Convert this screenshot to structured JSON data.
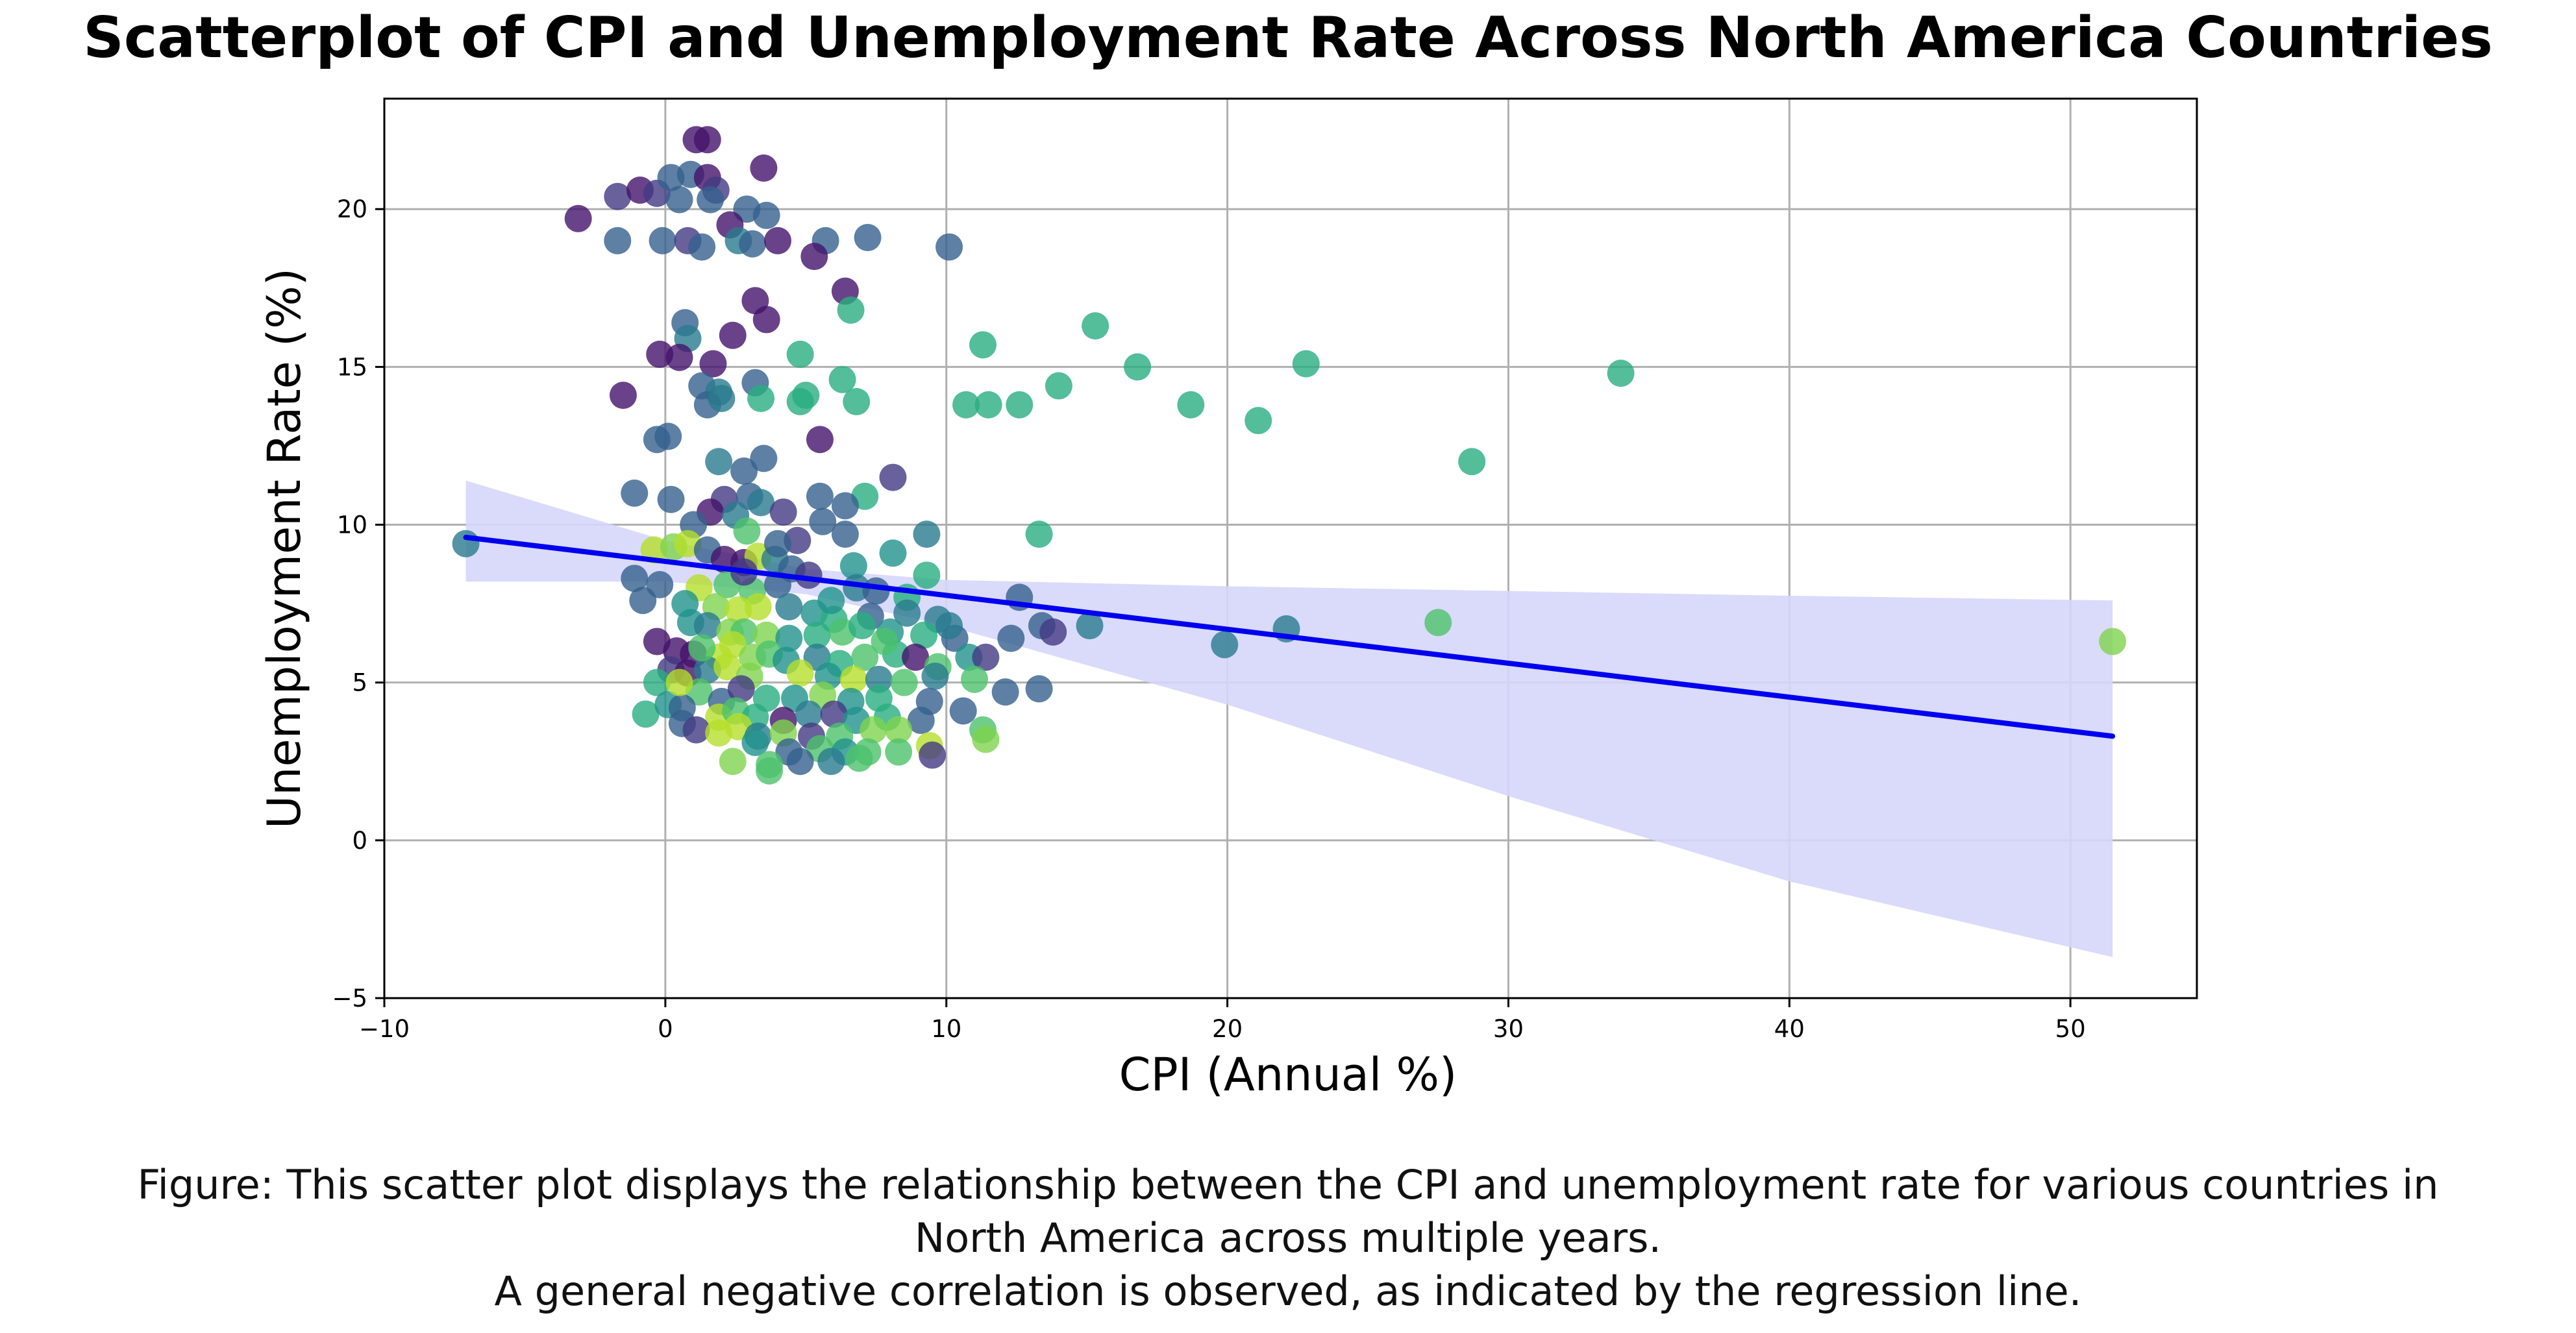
{
  "chart_data": {
    "type": "scatter",
    "title": "Scatterplot of CPI and Unemployment Rate Across North America Countries",
    "xlabel": "CPI (Annual %)",
    "ylabel": "Unemployment Rate (%)",
    "xlim": [
      -10,
      54.5
    ],
    "ylim": [
      -5,
      23.5
    ],
    "xticks": [
      -10,
      0,
      10,
      20,
      30,
      40,
      50
    ],
    "yticks": [
      -5,
      0,
      5,
      10,
      15,
      20
    ],
    "xtick_labels": [
      "−10",
      "0",
      "10",
      "20",
      "30",
      "40",
      "50"
    ],
    "ytick_labels": [
      "−5",
      "0",
      "5",
      "10",
      "15",
      "20"
    ],
    "grid": true,
    "legend": "none",
    "colors": {
      "regression_line": "#0000ee",
      "confidence_band": "#d6d6fb",
      "palette": [
        "#45136b",
        "#443983",
        "#35608d",
        "#297b8e",
        "#20928c",
        "#28ae80",
        "#4cc26c",
        "#7fd34e",
        "#b5de2b"
      ]
    },
    "regression": {
      "x_start": -7.1,
      "y_start": 9.6,
      "x_end": 51.5,
      "y_end": 3.3,
      "band_upper": [
        [
          -7.1,
          11.4
        ],
        [
          0,
          9.5
        ],
        [
          5,
          8.6
        ],
        [
          10,
          8.25
        ],
        [
          20,
          8.05
        ],
        [
          30,
          7.9
        ],
        [
          40,
          7.75
        ],
        [
          51.5,
          7.6
        ]
      ],
      "band_lower": [
        [
          -7.1,
          8.2
        ],
        [
          0,
          8.2
        ],
        [
          5,
          7.8
        ],
        [
          10,
          6.8
        ],
        [
          20,
          4.3
        ],
        [
          30,
          1.4
        ],
        [
          40,
          -1.3
        ],
        [
          51.5,
          -3.7
        ]
      ]
    },
    "points": [
      {
        "x": -3.1,
        "y": 19.7,
        "c": 0
      },
      {
        "x": -1.7,
        "y": 20.4,
        "c": 1
      },
      {
        "x": -0.9,
        "y": 20.6,
        "c": 0
      },
      {
        "x": -0.3,
        "y": 20.5,
        "c": 1
      },
      {
        "x": 0.2,
        "y": 21.0,
        "c": 2
      },
      {
        "x": 1.1,
        "y": 22.2,
        "c": 0
      },
      {
        "x": 1.5,
        "y": 22.2,
        "c": 0
      },
      {
        "x": 0.9,
        "y": 21.1,
        "c": 2
      },
      {
        "x": 1.5,
        "y": 21.0,
        "c": 0
      },
      {
        "x": 3.5,
        "y": 21.3,
        "c": 0
      },
      {
        "x": 1.8,
        "y": 20.6,
        "c": 1
      },
      {
        "x": 0.5,
        "y": 20.3,
        "c": 2
      },
      {
        "x": 1.6,
        "y": 20.3,
        "c": 2
      },
      {
        "x": 2.9,
        "y": 20.0,
        "c": 2
      },
      {
        "x": 3.6,
        "y": 19.8,
        "c": 2
      },
      {
        "x": 2.3,
        "y": 19.5,
        "c": 0
      },
      {
        "x": -1.7,
        "y": 19.0,
        "c": 2
      },
      {
        "x": -0.1,
        "y": 19.0,
        "c": 2
      },
      {
        "x": 0.8,
        "y": 19.0,
        "c": 1
      },
      {
        "x": 2.6,
        "y": 19.0,
        "c": 3
      },
      {
        "x": 3.1,
        "y": 18.9,
        "c": 2
      },
      {
        "x": 1.3,
        "y": 18.8,
        "c": 2
      },
      {
        "x": 4.0,
        "y": 19.0,
        "c": 0
      },
      {
        "x": 5.7,
        "y": 19.0,
        "c": 2
      },
      {
        "x": 7.2,
        "y": 19.1,
        "c": 2
      },
      {
        "x": 5.3,
        "y": 18.5,
        "c": 0
      },
      {
        "x": 10.1,
        "y": 18.8,
        "c": 2
      },
      {
        "x": 3.2,
        "y": 17.1,
        "c": 0
      },
      {
        "x": 6.4,
        "y": 17.4,
        "c": 0
      },
      {
        "x": 6.6,
        "y": 16.8,
        "c": 5
      },
      {
        "x": 3.6,
        "y": 16.5,
        "c": 0
      },
      {
        "x": 0.7,
        "y": 16.4,
        "c": 2
      },
      {
        "x": 0.8,
        "y": 15.9,
        "c": 3
      },
      {
        "x": 2.4,
        "y": 16.0,
        "c": 0
      },
      {
        "x": -0.2,
        "y": 15.4,
        "c": 0
      },
      {
        "x": 0.5,
        "y": 15.3,
        "c": 0
      },
      {
        "x": 1.7,
        "y": 15.1,
        "c": 0
      },
      {
        "x": 4.8,
        "y": 15.4,
        "c": 5
      },
      {
        "x": 11.3,
        "y": 15.7,
        "c": 5
      },
      {
        "x": 15.3,
        "y": 16.3,
        "c": 5
      },
      {
        "x": 16.8,
        "y": 15.0,
        "c": 5
      },
      {
        "x": 22.8,
        "y": 15.1,
        "c": 5
      },
      {
        "x": 34.0,
        "y": 14.8,
        "c": 5
      },
      {
        "x": 1.3,
        "y": 14.4,
        "c": 2
      },
      {
        "x": 3.2,
        "y": 14.5,
        "c": 2
      },
      {
        "x": 1.9,
        "y": 14.2,
        "c": 3
      },
      {
        "x": 6.3,
        "y": 14.6,
        "c": 5
      },
      {
        "x": 1.5,
        "y": 13.8,
        "c": 2
      },
      {
        "x": 2.0,
        "y": 14.0,
        "c": 3
      },
      {
        "x": 3.4,
        "y": 14.0,
        "c": 5
      },
      {
        "x": 5.0,
        "y": 14.1,
        "c": 5
      },
      {
        "x": 4.8,
        "y": 13.9,
        "c": 5
      },
      {
        "x": 6.8,
        "y": 13.9,
        "c": 5
      },
      {
        "x": 10.7,
        "y": 13.8,
        "c": 5
      },
      {
        "x": 11.5,
        "y": 13.8,
        "c": 5
      },
      {
        "x": 12.6,
        "y": 13.8,
        "c": 5
      },
      {
        "x": 14.0,
        "y": 14.4,
        "c": 5
      },
      {
        "x": 18.7,
        "y": 13.8,
        "c": 5
      },
      {
        "x": 21.1,
        "y": 13.3,
        "c": 5
      },
      {
        "x": -1.5,
        "y": 14.1,
        "c": 0
      },
      {
        "x": -0.3,
        "y": 12.7,
        "c": 2
      },
      {
        "x": 0.1,
        "y": 12.8,
        "c": 2
      },
      {
        "x": 5.5,
        "y": 12.7,
        "c": 0
      },
      {
        "x": 1.9,
        "y": 12.0,
        "c": 3
      },
      {
        "x": 3.5,
        "y": 12.1,
        "c": 2
      },
      {
        "x": 28.7,
        "y": 12.0,
        "c": 5
      },
      {
        "x": 2.8,
        "y": 11.7,
        "c": 2
      },
      {
        "x": 8.1,
        "y": 11.5,
        "c": 1
      },
      {
        "x": -1.1,
        "y": 11.0,
        "c": 2
      },
      {
        "x": 0.2,
        "y": 10.8,
        "c": 2
      },
      {
        "x": 2.1,
        "y": 10.8,
        "c": 1
      },
      {
        "x": 3.0,
        "y": 10.9,
        "c": 2
      },
      {
        "x": 3.4,
        "y": 10.7,
        "c": 3
      },
      {
        "x": 5.5,
        "y": 10.9,
        "c": 2
      },
      {
        "x": 7.1,
        "y": 10.9,
        "c": 5
      },
      {
        "x": 1.6,
        "y": 10.4,
        "c": 0
      },
      {
        "x": 2.5,
        "y": 10.3,
        "c": 3
      },
      {
        "x": 4.2,
        "y": 10.4,
        "c": 1
      },
      {
        "x": 6.4,
        "y": 10.6,
        "c": 2
      },
      {
        "x": 1.0,
        "y": 10.0,
        "c": 2
      },
      {
        "x": 5.6,
        "y": 10.1,
        "c": 2
      },
      {
        "x": 2.9,
        "y": 9.8,
        "c": 6
      },
      {
        "x": 4.7,
        "y": 9.5,
        "c": 1
      },
      {
        "x": 6.4,
        "y": 9.7,
        "c": 2
      },
      {
        "x": 9.3,
        "y": 9.7,
        "c": 3
      },
      {
        "x": 13.3,
        "y": 9.7,
        "c": 5
      },
      {
        "x": -7.1,
        "y": 9.4,
        "c": 3
      },
      {
        "x": -0.4,
        "y": 9.2,
        "c": 8
      },
      {
        "x": 0.3,
        "y": 9.3,
        "c": 7
      },
      {
        "x": 0.8,
        "y": 9.4,
        "c": 8
      },
      {
        "x": 1.5,
        "y": 9.2,
        "c": 2
      },
      {
        "x": 2.1,
        "y": 8.9,
        "c": 0
      },
      {
        "x": 2.8,
        "y": 8.8,
        "c": 0
      },
      {
        "x": 3.3,
        "y": 9.0,
        "c": 8
      },
      {
        "x": 3.9,
        "y": 8.9,
        "c": 3
      },
      {
        "x": 8.1,
        "y": 9.1,
        "c": 4
      },
      {
        "x": 4.5,
        "y": 8.6,
        "c": 2
      },
      {
        "x": 5.1,
        "y": 8.4,
        "c": 1
      },
      {
        "x": 6.7,
        "y": 8.7,
        "c": 4
      },
      {
        "x": 9.3,
        "y": 8.4,
        "c": 5
      },
      {
        "x": -1.1,
        "y": 8.3,
        "c": 2
      },
      {
        "x": -0.2,
        "y": 8.1,
        "c": 2
      },
      {
        "x": 1.2,
        "y": 8.0,
        "c": 8
      },
      {
        "x": 2.2,
        "y": 8.1,
        "c": 6
      },
      {
        "x": 3.1,
        "y": 7.9,
        "c": 6
      },
      {
        "x": 4.0,
        "y": 8.1,
        "c": 2
      },
      {
        "x": 6.8,
        "y": 8.0,
        "c": 3
      },
      {
        "x": 7.5,
        "y": 7.9,
        "c": 2
      },
      {
        "x": 8.6,
        "y": 7.7,
        "c": 5
      },
      {
        "x": -0.8,
        "y": 7.6,
        "c": 2
      },
      {
        "x": 0.7,
        "y": 7.5,
        "c": 4
      },
      {
        "x": 1.8,
        "y": 7.4,
        "c": 7
      },
      {
        "x": 2.6,
        "y": 7.3,
        "c": 8
      },
      {
        "x": 3.3,
        "y": 7.4,
        "c": 8
      },
      {
        "x": 4.4,
        "y": 7.4,
        "c": 3
      },
      {
        "x": 5.3,
        "y": 7.2,
        "c": 4
      },
      {
        "x": 6.0,
        "y": 7.0,
        "c": 5
      },
      {
        "x": 7.3,
        "y": 7.1,
        "c": 2
      },
      {
        "x": 8.6,
        "y": 7.2,
        "c": 3
      },
      {
        "x": 9.7,
        "y": 7.0,
        "c": 3
      },
      {
        "x": 12.6,
        "y": 7.7,
        "c": 2
      },
      {
        "x": 0.9,
        "y": 6.9,
        "c": 4
      },
      {
        "x": 1.5,
        "y": 6.8,
        "c": 3
      },
      {
        "x": 2.3,
        "y": 6.6,
        "c": 7
      },
      {
        "x": 2.8,
        "y": 6.6,
        "c": 6
      },
      {
        "x": 3.6,
        "y": 6.5,
        "c": 7
      },
      {
        "x": 4.4,
        "y": 6.4,
        "c": 4
      },
      {
        "x": 5.4,
        "y": 6.5,
        "c": 5
      },
      {
        "x": 6.3,
        "y": 6.6,
        "c": 6
      },
      {
        "x": 7.0,
        "y": 6.8,
        "c": 5
      },
      {
        "x": 8.0,
        "y": 6.6,
        "c": 4
      },
      {
        "x": 9.2,
        "y": 6.5,
        "c": 5
      },
      {
        "x": 10.3,
        "y": 6.4,
        "c": 2
      },
      {
        "x": 13.4,
        "y": 6.8,
        "c": 2
      },
      {
        "x": 13.8,
        "y": 6.6,
        "c": 1
      },
      {
        "x": 15.1,
        "y": 6.8,
        "c": 3
      },
      {
        "x": 19.9,
        "y": 6.2,
        "c": 3
      },
      {
        "x": 22.1,
        "y": 6.7,
        "c": 3
      },
      {
        "x": 27.5,
        "y": 6.9,
        "c": 6
      },
      {
        "x": 51.5,
        "y": 6.3,
        "c": 7
      },
      {
        "x": -0.3,
        "y": 6.3,
        "c": 0
      },
      {
        "x": 0.4,
        "y": 6.0,
        "c": 0
      },
      {
        "x": 1.0,
        "y": 5.9,
        "c": 0
      },
      {
        "x": 1.9,
        "y": 5.8,
        "c": 8
      },
      {
        "x": 2.4,
        "y": 6.2,
        "c": 8
      },
      {
        "x": 3.1,
        "y": 5.8,
        "c": 7
      },
      {
        "x": 3.7,
        "y": 5.9,
        "c": 6
      },
      {
        "x": 4.3,
        "y": 5.7,
        "c": 4
      },
      {
        "x": 5.4,
        "y": 5.8,
        "c": 3
      },
      {
        "x": 6.2,
        "y": 5.6,
        "c": 5
      },
      {
        "x": 7.1,
        "y": 5.8,
        "c": 6
      },
      {
        "x": 8.2,
        "y": 5.9,
        "c": 5
      },
      {
        "x": 8.9,
        "y": 5.8,
        "c": 0
      },
      {
        "x": 9.7,
        "y": 5.5,
        "c": 6
      },
      {
        "x": 10.8,
        "y": 5.8,
        "c": 4
      },
      {
        "x": 11.4,
        "y": 5.8,
        "c": 1
      },
      {
        "x": 12.3,
        "y": 6.4,
        "c": 2
      },
      {
        "x": 0.2,
        "y": 5.4,
        "c": 1
      },
      {
        "x": 0.8,
        "y": 5.3,
        "c": 0
      },
      {
        "x": 1.5,
        "y": 5.4,
        "c": 3
      },
      {
        "x": 2.2,
        "y": 5.5,
        "c": 8
      },
      {
        "x": 3.0,
        "y": 5.2,
        "c": 7
      },
      {
        "x": 4.8,
        "y": 5.3,
        "c": 8
      },
      {
        "x": 5.8,
        "y": 5.2,
        "c": 4
      },
      {
        "x": 6.7,
        "y": 5.1,
        "c": 8
      },
      {
        "x": 7.6,
        "y": 5.1,
        "c": 3
      },
      {
        "x": 8.5,
        "y": 5.0,
        "c": 6
      },
      {
        "x": 9.6,
        "y": 5.2,
        "c": 3
      },
      {
        "x": 11.0,
        "y": 5.1,
        "c": 6
      },
      {
        "x": -0.3,
        "y": 5.0,
        "c": 5
      },
      {
        "x": 1.2,
        "y": 4.7,
        "c": 6
      },
      {
        "x": 2.0,
        "y": 4.4,
        "c": 2
      },
      {
        "x": 2.7,
        "y": 4.8,
        "c": 1
      },
      {
        "x": 3.6,
        "y": 4.5,
        "c": 5
      },
      {
        "x": 4.6,
        "y": 4.5,
        "c": 4
      },
      {
        "x": 5.6,
        "y": 4.6,
        "c": 7
      },
      {
        "x": 6.6,
        "y": 4.4,
        "c": 4
      },
      {
        "x": 7.6,
        "y": 4.5,
        "c": 5
      },
      {
        "x": 9.4,
        "y": 4.4,
        "c": 2
      },
      {
        "x": 12.1,
        "y": 4.7,
        "c": 2
      },
      {
        "x": 13.3,
        "y": 4.8,
        "c": 2
      },
      {
        "x": -0.7,
        "y": 4.0,
        "c": 5
      },
      {
        "x": 0.1,
        "y": 4.3,
        "c": 4
      },
      {
        "x": 0.6,
        "y": 4.2,
        "c": 2
      },
      {
        "x": 1.9,
        "y": 3.9,
        "c": 8
      },
      {
        "x": 2.5,
        "y": 4.1,
        "c": 6
      },
      {
        "x": 3.2,
        "y": 3.9,
        "c": 5
      },
      {
        "x": 4.2,
        "y": 3.8,
        "c": 0
      },
      {
        "x": 5.1,
        "y": 4.0,
        "c": 3
      },
      {
        "x": 6.0,
        "y": 4.0,
        "c": 1
      },
      {
        "x": 6.8,
        "y": 3.8,
        "c": 4
      },
      {
        "x": 7.9,
        "y": 3.9,
        "c": 5
      },
      {
        "x": 9.1,
        "y": 3.8,
        "c": 2
      },
      {
        "x": 10.6,
        "y": 4.1,
        "c": 2
      },
      {
        "x": 11.3,
        "y": 3.5,
        "c": 6
      },
      {
        "x": 0.6,
        "y": 3.7,
        "c": 2
      },
      {
        "x": 1.1,
        "y": 3.5,
        "c": 1
      },
      {
        "x": 1.9,
        "y": 3.4,
        "c": 8
      },
      {
        "x": 2.6,
        "y": 3.6,
        "c": 8
      },
      {
        "x": 3.3,
        "y": 3.3,
        "c": 3
      },
      {
        "x": 4.2,
        "y": 3.4,
        "c": 7
      },
      {
        "x": 5.2,
        "y": 3.3,
        "c": 1
      },
      {
        "x": 6.2,
        "y": 3.3,
        "c": 6
      },
      {
        "x": 7.4,
        "y": 3.5,
        "c": 7
      },
      {
        "x": 8.3,
        "y": 3.5,
        "c": 7
      },
      {
        "x": 11.4,
        "y": 3.2,
        "c": 7
      },
      {
        "x": 3.2,
        "y": 3.1,
        "c": 4
      },
      {
        "x": 4.4,
        "y": 2.8,
        "c": 2
      },
      {
        "x": 5.5,
        "y": 2.9,
        "c": 6
      },
      {
        "x": 6.4,
        "y": 2.8,
        "c": 4
      },
      {
        "x": 7.2,
        "y": 2.8,
        "c": 6
      },
      {
        "x": 8.3,
        "y": 2.8,
        "c": 6
      },
      {
        "x": 9.4,
        "y": 3.0,
        "c": 8
      },
      {
        "x": 2.4,
        "y": 2.5,
        "c": 7
      },
      {
        "x": 3.7,
        "y": 2.4,
        "c": 6
      },
      {
        "x": 4.8,
        "y": 2.5,
        "c": 2
      },
      {
        "x": 5.9,
        "y": 2.5,
        "c": 3
      },
      {
        "x": 6.9,
        "y": 2.6,
        "c": 6
      },
      {
        "x": 9.5,
        "y": 2.7,
        "c": 1
      },
      {
        "x": 3.7,
        "y": 2.2,
        "c": 6
      },
      {
        "x": 1.3,
        "y": 6.1,
        "c": 6
      },
      {
        "x": 0.5,
        "y": 5.0,
        "c": 8
      },
      {
        "x": 2.8,
        "y": 8.5,
        "c": 1
      },
      {
        "x": 5.9,
        "y": 7.6,
        "c": 4
      },
      {
        "x": 4.0,
        "y": 9.4,
        "c": 2
      },
      {
        "x": 7.8,
        "y": 6.3,
        "c": 6
      },
      {
        "x": 10.1,
        "y": 6.8,
        "c": 3
      }
    ]
  },
  "caption": {
    "line1": "Figure: This scatter plot displays the relationship between the CPI and unemployment rate for various countries in",
    "line2": "North America across multiple years.",
    "line3": "A general negative correlation is observed, as indicated by the regression line."
  }
}
